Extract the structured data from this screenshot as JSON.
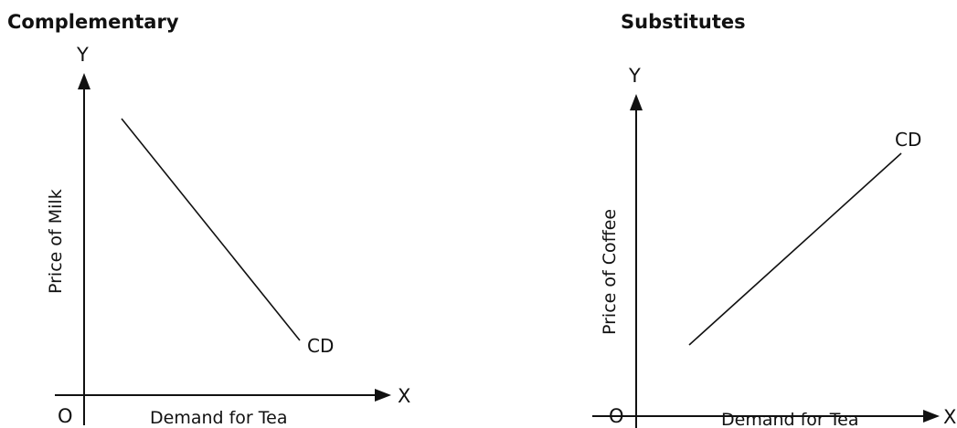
{
  "panels": [
    {
      "title": "Complementary",
      "y_axis_letter": "Y",
      "x_axis_letter": "X",
      "origin_label": "O",
      "ylabel": "Price of Milk",
      "xlabel": "Demand for Tea",
      "curve_label": "CD",
      "curve_direction": "downward-sloping"
    },
    {
      "title": "Substitutes",
      "y_axis_letter": "Y",
      "x_axis_letter": "X",
      "origin_label": "O",
      "ylabel": "Price of Coffee",
      "xlabel": "Demand for Tea",
      "curve_label": "CD",
      "curve_direction": "upward-sloping"
    }
  ]
}
